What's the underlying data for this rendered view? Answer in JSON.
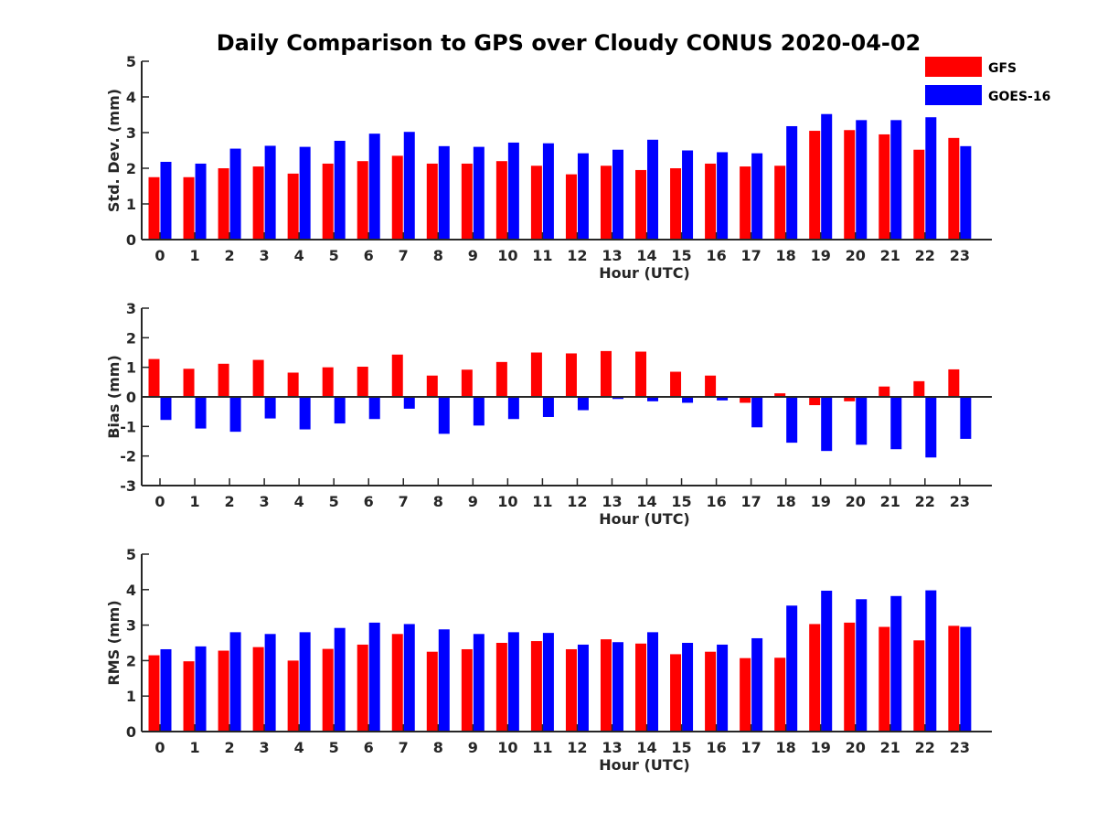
{
  "title": "Daily Comparison to GPS over Cloudy CONUS 2020-04-02",
  "legend": [
    {
      "name": "GFS",
      "color": "#ff0000"
    },
    {
      "name": "GOES-16",
      "color": "#0000ff"
    }
  ],
  "chart_data": [
    {
      "type": "bar",
      "id": "std",
      "title": "Daily Comparison to GPS over Cloudy CONUS 2020-04-02",
      "xlabel": "Hour (UTC)",
      "ylabel": "Std. Dev. (mm)",
      "ylim": [
        0,
        5
      ],
      "yticks": [
        0,
        1,
        2,
        3,
        4,
        5
      ],
      "categories": [
        "0",
        "1",
        "2",
        "3",
        "4",
        "5",
        "6",
        "7",
        "8",
        "9",
        "10",
        "11",
        "12",
        "13",
        "14",
        "15",
        "16",
        "17",
        "18",
        "19",
        "20",
        "21",
        "22",
        "23"
      ],
      "series": [
        {
          "name": "GFS",
          "color": "#ff0000",
          "values": [
            1.75,
            1.75,
            2.0,
            2.05,
            1.85,
            2.13,
            2.2,
            2.35,
            2.13,
            2.13,
            2.2,
            2.07,
            1.83,
            2.07,
            1.95,
            2.0,
            2.13,
            2.05,
            2.07,
            3.05,
            3.07,
            2.95,
            2.52,
            2.85
          ]
        },
        {
          "name": "GOES-16",
          "color": "#0000ff",
          "values": [
            2.18,
            2.13,
            2.55,
            2.63,
            2.6,
            2.77,
            2.97,
            3.02,
            2.62,
            2.6,
            2.72,
            2.7,
            2.42,
            2.52,
            2.8,
            2.5,
            2.45,
            2.42,
            3.18,
            3.52,
            3.35,
            3.35,
            3.43,
            2.62
          ]
        }
      ]
    },
    {
      "type": "bar",
      "id": "bias",
      "xlabel": "Hour (UTC)",
      "ylabel": "Bias (mm)",
      "ylim": [
        -3,
        3
      ],
      "yticks": [
        -3,
        -2,
        -1,
        0,
        1,
        2,
        3
      ],
      "categories": [
        "0",
        "1",
        "2",
        "3",
        "4",
        "5",
        "6",
        "7",
        "8",
        "9",
        "10",
        "11",
        "12",
        "13",
        "14",
        "15",
        "16",
        "17",
        "18",
        "19",
        "20",
        "21",
        "22",
        "23"
      ],
      "series": [
        {
          "name": "GFS",
          "color": "#ff0000",
          "values": [
            1.28,
            0.95,
            1.12,
            1.25,
            0.82,
            1.0,
            1.02,
            1.43,
            0.72,
            0.92,
            1.18,
            1.5,
            1.47,
            1.55,
            1.53,
            0.85,
            0.72,
            -0.2,
            0.12,
            -0.28,
            -0.15,
            0.35,
            0.53,
            0.93
          ]
        },
        {
          "name": "GOES-16",
          "color": "#0000ff",
          "values": [
            -0.78,
            -1.07,
            -1.18,
            -0.73,
            -1.1,
            -0.9,
            -0.75,
            -0.4,
            -1.25,
            -0.97,
            -0.75,
            -0.68,
            -0.45,
            -0.07,
            -0.15,
            -0.2,
            -0.12,
            -1.03,
            -1.55,
            -1.83,
            -1.62,
            -1.77,
            -2.05,
            -1.42
          ]
        }
      ]
    },
    {
      "type": "bar",
      "id": "rms",
      "xlabel": "Hour (UTC)",
      "ylabel": "RMS (mm)",
      "ylim": [
        0,
        5
      ],
      "yticks": [
        0,
        1,
        2,
        3,
        4,
        5
      ],
      "categories": [
        "0",
        "1",
        "2",
        "3",
        "4",
        "5",
        "6",
        "7",
        "8",
        "9",
        "10",
        "11",
        "12",
        "13",
        "14",
        "15",
        "16",
        "17",
        "18",
        "19",
        "20",
        "21",
        "22",
        "23"
      ],
      "series": [
        {
          "name": "GFS",
          "color": "#ff0000",
          "values": [
            2.15,
            1.98,
            2.28,
            2.38,
            2.0,
            2.33,
            2.45,
            2.75,
            2.25,
            2.32,
            2.5,
            2.55,
            2.32,
            2.6,
            2.48,
            2.18,
            2.25,
            2.07,
            2.08,
            3.03,
            3.07,
            2.95,
            2.57,
            2.98
          ]
        },
        {
          "name": "GOES-16",
          "color": "#0000ff",
          "values": [
            2.32,
            2.4,
            2.8,
            2.75,
            2.8,
            2.92,
            3.07,
            3.03,
            2.88,
            2.75,
            2.8,
            2.78,
            2.45,
            2.52,
            2.8,
            2.5,
            2.45,
            2.63,
            3.55,
            3.97,
            3.73,
            3.82,
            3.98,
            2.95
          ]
        }
      ]
    }
  ]
}
